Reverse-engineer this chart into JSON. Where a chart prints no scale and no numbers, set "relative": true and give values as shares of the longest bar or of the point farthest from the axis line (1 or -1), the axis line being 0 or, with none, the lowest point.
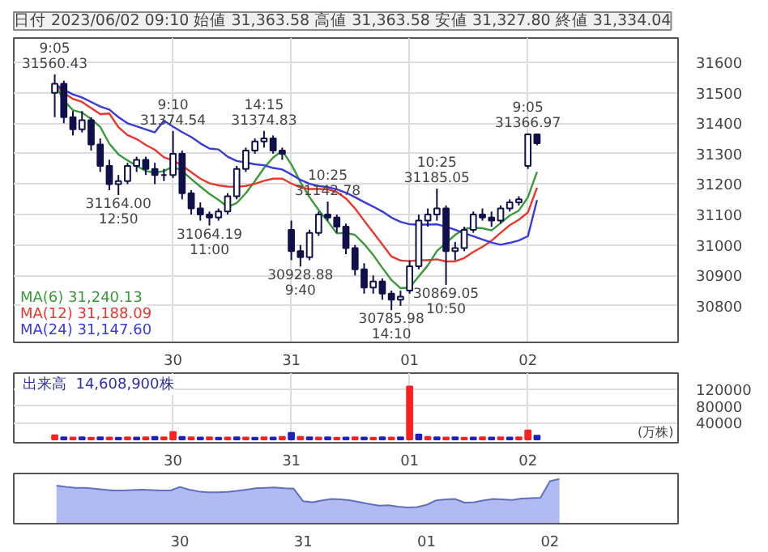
{
  "chart_data": [
    {
      "type": "candlestick",
      "title": "日付 2023/06/02 09:10 始値 31,363.58 高値 31,363.58 安値 31,327.80 終値 31,334.04",
      "categories": [
        null,
        null,
        null,
        null,
        null,
        null,
        null,
        null,
        null,
        null,
        null,
        null,
        null,
        "30",
        null,
        null,
        null,
        null,
        null,
        null,
        null,
        null,
        null,
        null,
        null,
        null,
        "31",
        null,
        null,
        null,
        null,
        null,
        null,
        null,
        null,
        null,
        null,
        null,
        null,
        "01",
        null,
        null,
        null,
        null,
        null,
        null,
        null,
        null,
        null,
        null,
        null,
        null,
        "02",
        null,
        null,
        null,
        null,
        null,
        null,
        null,
        null,
        null,
        null,
        null,
        null,
        null,
        null,
        null,
        null
      ],
      "ohlc": [
        [
          31500,
          31560.43,
          31420,
          31530
        ],
        [
          31530,
          31540,
          31400,
          31420
        ],
        [
          31420,
          31440,
          31360,
          31380
        ],
        [
          31380,
          31440,
          31370,
          31410
        ],
        [
          31410,
          31420,
          31310,
          31330
        ],
        [
          31330,
          31350,
          31240,
          31260
        ],
        [
          31260,
          31280,
          31180,
          31200
        ],
        [
          31200,
          31230,
          31164.0,
          31210
        ],
        [
          31210,
          31270,
          31200,
          31260
        ],
        [
          31260,
          31290,
          31240,
          31280
        ],
        [
          31280,
          31290,
          31230,
          31250
        ],
        [
          31250,
          31270,
          31200,
          31230
        ],
        [
          31230,
          31250,
          31210,
          31230
        ],
        [
          31230,
          31374.54,
          31220,
          31300
        ],
        [
          31300,
          31310,
          31150,
          31170
        ],
        [
          31170,
          31180,
          31100,
          31120
        ],
        [
          31120,
          31140,
          31080,
          31100
        ],
        [
          31100,
          31110,
          31064.19,
          31090
        ],
        [
          31090,
          31120,
          31080,
          31110
        ],
        [
          31110,
          31170,
          31100,
          31160
        ],
        [
          31160,
          31260,
          31150,
          31250
        ],
        [
          31250,
          31320,
          31240,
          31310
        ],
        [
          31310,
          31350,
          31300,
          31340
        ],
        [
          31340,
          31374.83,
          31320,
          31350
        ],
        [
          31350,
          31360,
          31300,
          31310
        ],
        [
          31310,
          31320,
          31280,
          31300
        ],
        [
          31050,
          31080,
          30950,
          30980
        ],
        [
          30980,
          31000,
          30928.88,
          30960
        ],
        [
          30960,
          31050,
          30950,
          31040
        ],
        [
          31040,
          31110,
          31030,
          31100
        ],
        [
          31100,
          31142.78,
          31080,
          31090
        ],
        [
          31090,
          31100,
          31040,
          31060
        ],
        [
          31060,
          31070,
          30970,
          30990
        ],
        [
          30990,
          31000,
          30900,
          30920
        ],
        [
          30920,
          30940,
          30840,
          30860
        ],
        [
          30860,
          30900,
          30840,
          30880
        ],
        [
          30880,
          30890,
          30820,
          30840
        ],
        [
          30840,
          30850,
          30785.98,
          30820
        ],
        [
          30820,
          30850,
          30800,
          30830
        ],
        [
          30850,
          30950,
          30840,
          30930
        ],
        [
          30930,
          31100,
          30920,
          31080
        ],
        [
          31080,
          31120,
          31060,
          31100
        ],
        [
          31100,
          31185.05,
          31080,
          31120
        ],
        [
          31120,
          31130,
          30869.05,
          30980
        ],
        [
          30980,
          31010,
          30950,
          30990
        ],
        [
          30990,
          31060,
          30980,
          31050
        ],
        [
          31050,
          31110,
          31040,
          31100
        ],
        [
          31100,
          31120,
          31080,
          31090
        ],
        [
          31090,
          31110,
          31060,
          31080
        ],
        [
          31080,
          31130,
          31070,
          31120
        ],
        [
          31120,
          31150,
          31110,
          31140
        ],
        [
          31140,
          31160,
          31130,
          31150
        ],
        [
          31260,
          31366.97,
          31250,
          31363.58
        ],
        [
          31363.58,
          31363.58,
          31327.8,
          31334.04
        ],
        null,
        null,
        null,
        null,
        null,
        null,
        null,
        null,
        null,
        null,
        null,
        null,
        null,
        null,
        null
      ],
      "series": [
        {
          "name": "MA(6)  31,240.13",
          "type": "line",
          "color": "#3a9a3a",
          "values": [
            31530,
            31475,
            31443,
            31435,
            31414,
            31388,
            31333,
            31298,
            31278,
            31260,
            31243,
            31238,
            31243,
            31258,
            31243,
            31217,
            31192,
            31168,
            31148,
            31125,
            31138,
            31170,
            31210,
            31253,
            31287,
            31310,
            31265,
            31207,
            31157,
            31115,
            31078,
            31038,
            31040,
            31033,
            31003,
            30967,
            30925,
            30885,
            30858,
            30860,
            30897,
            30933,
            30980,
            31007,
            31033,
            31053,
            31057,
            31055,
            31048,
            31072,
            31097,
            31113,
            31157,
            31240.13,
            null,
            null,
            null,
            null,
            null,
            null,
            null,
            null,
            null,
            null,
            null,
            null,
            null,
            null,
            null
          ]
        },
        {
          "name": "MA(12)  31,188.09",
          "type": "line",
          "color": "#e8382e",
          "values": [
            31530,
            31500,
            31480,
            31470,
            31450,
            31430,
            31432,
            31387,
            31361,
            31348,
            31329,
            31313,
            31288,
            31278,
            31261,
            31239,
            31218,
            31203,
            31196,
            31192,
            31191,
            31194,
            31201,
            31211,
            31218,
            31218,
            31202,
            31189,
            31184,
            31184,
            31183,
            31174,
            31153,
            31120,
            31080,
            31041,
            31002,
            30962,
            30949,
            30947,
            30950,
            30950,
            30953,
            30946,
            30946,
            30957,
            30977,
            30994,
            31014,
            31040,
            31065,
            31083,
            31107,
            31188.09,
            null,
            null,
            null,
            null,
            null,
            null,
            null,
            null,
            null,
            null,
            null,
            null,
            null,
            null,
            null
          ]
        },
        {
          "name": "MA(24)  31,147.60",
          "type": "line",
          "color": "#3a3ad8",
          "values": [
            31530,
            31510,
            31495,
            31485,
            31470,
            31455,
            31445,
            31420,
            31400,
            31390,
            31380,
            31370,
            31409,
            31389,
            31371,
            31355,
            31334,
            31317,
            31314,
            31290,
            31276,
            31271,
            31265,
            31262,
            31253,
            31248,
            31232,
            31214,
            31201,
            31194,
            31190,
            31183,
            31172,
            31157,
            31141,
            31126,
            31110,
            31090,
            31076,
            31068,
            31067,
            31067,
            31068,
            31060,
            31050,
            31039,
            31029,
            31018,
            31008,
            31001,
            31007,
            31015,
            31029,
            31147.6,
            null,
            null,
            null,
            null,
            null,
            null,
            null,
            null,
            null,
            null,
            null,
            null,
            null,
            null,
            null
          ]
        }
      ],
      "ylim": [
        30680,
        31680
      ],
      "yticks": [
        30800,
        30900,
        31000,
        31100,
        31200,
        31300,
        31400,
        31500,
        31600
      ],
      "grid": true,
      "legend": "bottom left",
      "annotations": [
        {
          "text": "9:05\n31560.43",
          "y": 31560.43
        },
        {
          "text": "31164.00\n12:50",
          "y": 31164.0
        },
        {
          "text": "9:10\n31374.54",
          "y": 31374.54
        },
        {
          "text": "31064.19\n11:00",
          "y": 31064.19
        },
        {
          "text": "14:15\n31374.83",
          "y": 31374.83
        },
        {
          "text": "30928.88\n9:40",
          "y": 30928.88
        },
        {
          "text": "10:25\n31142.78",
          "y": 31142.78
        },
        {
          "text": "30785.98\n14:10",
          "y": 30785.98
        },
        {
          "text": "10:25\n31185.05",
          "y": 31185.05
        },
        {
          "text": "30869.05\n10:50",
          "y": 30869.05
        },
        {
          "text": "9:05\n31366.97",
          "y": 31366.97
        }
      ]
    },
    {
      "type": "bar",
      "categories": [
        null,
        null,
        null,
        null,
        null,
        null,
        null,
        null,
        null,
        null,
        null,
        null,
        null,
        "30",
        null,
        null,
        null,
        null,
        null,
        null,
        null,
        null,
        null,
        null,
        null,
        null,
        "31",
        null,
        null,
        null,
        null,
        null,
        null,
        null,
        null,
        null,
        null,
        null,
        null,
        "01",
        null,
        null,
        null,
        null,
        null,
        null,
        null,
        null,
        null,
        null,
        null,
        null,
        "02",
        null,
        null,
        null,
        null,
        null,
        null,
        null,
        null,
        null,
        null,
        null,
        null,
        null,
        null,
        null,
        null
      ],
      "series": [
        {
          "name": "出来高  14,608,900株",
          "values": [
            10000,
            5000,
            4500,
            5000,
            4000,
            5000,
            4500,
            4000,
            5000,
            4500,
            5000,
            6000,
            5000,
            18000,
            6000,
            5000,
            4500,
            5000,
            4000,
            4500,
            5000,
            4500,
            4000,
            5000,
            4500,
            6000,
            16000,
            6000,
            5000,
            4500,
            5000,
            4000,
            4500,
            5000,
            4500,
            4000,
            5000,
            4500,
            5000,
            128000,
            12000,
            6000,
            5000,
            4500,
            5000,
            4000,
            4500,
            5000,
            4500,
            5000,
            4500,
            5000,
            22000,
            9000,
            null,
            null,
            null,
            null,
            null,
            null,
            null,
            null,
            null,
            null,
            null,
            null,
            null,
            null,
            null
          ],
          "colors": [
            "#ff2020",
            "#2020c0",
            "#ff2020",
            "#2020c0",
            "#ff2020",
            "#2020c0",
            "#ff2020",
            "#2020c0",
            "#ff2020",
            "#2020c0",
            "#ff2020",
            "#2020c0",
            "#ff2020",
            "#ff2020",
            "#2020c0",
            "#ff2020",
            "#2020c0",
            "#ff2020",
            "#2020c0",
            "#ff2020",
            "#2020c0",
            "#ff2020",
            "#2020c0",
            "#ff2020",
            "#2020c0",
            "#ff2020",
            "#2020c0",
            "#ff2020",
            "#2020c0",
            "#ff2020",
            "#2020c0",
            "#ff2020",
            "#2020c0",
            "#ff2020",
            "#2020c0",
            "#ff2020",
            "#2020c0",
            "#ff2020",
            "#2020c0",
            "#ff2020",
            "#2020c0",
            "#ff2020",
            "#2020c0",
            "#ff2020",
            "#2020c0",
            "#ff2020",
            "#2020c0",
            "#ff2020",
            "#2020c0",
            "#ff2020",
            "#2020c0",
            "#ff2020",
            "#ff2020",
            "#2020c0",
            "#ff2020",
            "#ff2020",
            "#ff2020",
            "#ff2020",
            "#ff2020",
            "#ff2020",
            "#ff2020",
            "#ff2020",
            "#ff2020",
            "#ff2020",
            "#ff2020",
            "#ff2020",
            "#ff2020",
            "#ff2020",
            "#ff2020"
          ]
        }
      ],
      "ylim": [
        -8000,
        160000
      ],
      "yticks": [
        40000,
        80000,
        120000
      ],
      "grid": true,
      "legend": "top left",
      "annotations": [
        "(万株)"
      ]
    },
    {
      "type": "area",
      "relative": true,
      "color": "#aab4f0",
      "categories": [
        null,
        null,
        null,
        null,
        null,
        null,
        null,
        null,
        null,
        null,
        null,
        null,
        null,
        "30",
        null,
        null,
        null,
        null,
        null,
        null,
        null,
        null,
        null,
        null,
        null,
        null,
        "31",
        null,
        null,
        null,
        null,
        null,
        null,
        null,
        null,
        null,
        null,
        null,
        null,
        "01",
        null,
        null,
        null,
        null,
        null,
        null,
        null,
        null,
        null,
        null,
        null,
        null,
        "02",
        null,
        null,
        null,
        null,
        null,
        null,
        null,
        null,
        null,
        null,
        null,
        null,
        null
      ],
      "values": [
        0.85,
        0.82,
        0.8,
        0.8,
        0.78,
        0.76,
        0.74,
        0.74,
        0.75,
        0.76,
        0.75,
        0.74,
        0.74,
        0.82,
        0.76,
        0.72,
        0.7,
        0.7,
        0.71,
        0.73,
        0.76,
        0.79,
        0.8,
        0.81,
        0.79,
        0.78,
        0.5,
        0.48,
        0.52,
        0.55,
        0.54,
        0.52,
        0.48,
        0.44,
        0.4,
        0.41,
        0.38,
        0.36,
        0.37,
        0.42,
        0.52,
        0.54,
        0.55,
        0.47,
        0.48,
        0.52,
        0.55,
        0.54,
        0.53,
        0.56,
        0.57,
        0.58,
        0.95,
        1.0,
        null,
        null,
        null,
        null,
        null,
        null,
        null,
        null,
        null,
        null,
        null,
        null
      ],
      "tick_labels": "x"
    }
  ]
}
